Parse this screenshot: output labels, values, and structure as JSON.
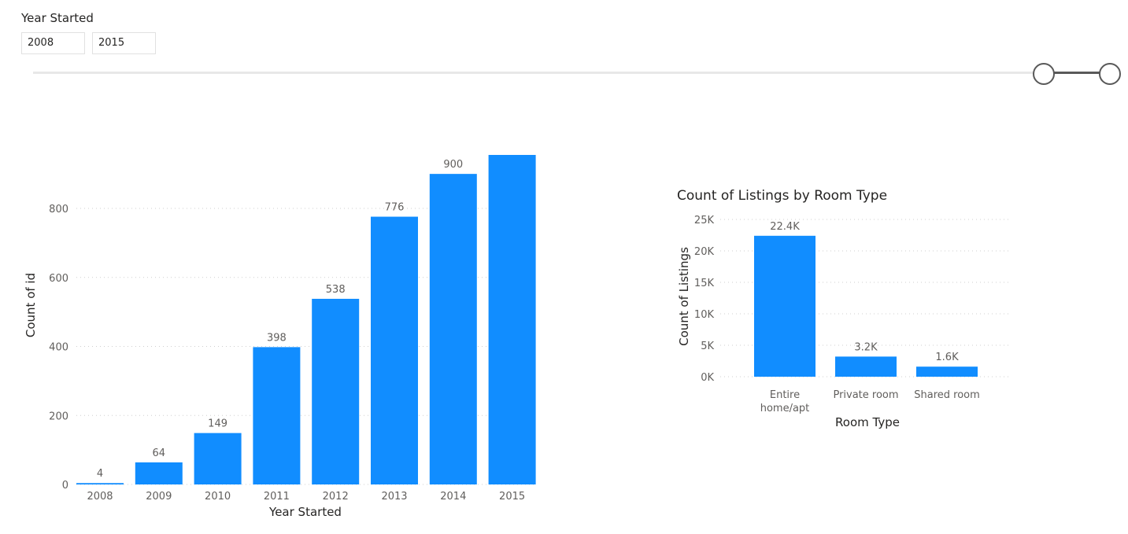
{
  "slicer": {
    "title": "Year Started",
    "start_value": "2008",
    "end_value": "2015",
    "range_min": 2008,
    "range_max": 2015
  },
  "colors": {
    "bar": "#118dff",
    "slider": "#595959"
  },
  "chart_data": [
    {
      "type": "bar",
      "title": "",
      "xlabel": "Year Started",
      "ylabel": "Count of id",
      "categories": [
        "2008",
        "2009",
        "2010",
        "2011",
        "2012",
        "2013",
        "2014",
        "2015"
      ],
      "values": [
        4,
        64,
        149,
        398,
        538,
        776,
        900,
        955
      ],
      "data_labels": [
        "4",
        "64",
        "149",
        "398",
        "538",
        "776",
        "900",
        ""
      ],
      "yticks": [
        0,
        200,
        400,
        600,
        800
      ],
      "ytick_labels": [
        "0",
        "200",
        "400",
        "600",
        "800"
      ],
      "ylim": [
        0,
        955
      ],
      "grid": true
    },
    {
      "type": "bar",
      "title": "Count of Listings by Room Type",
      "xlabel": "Room Type",
      "ylabel": "Count of Listings",
      "categories": [
        [
          "Entire",
          "home/apt"
        ],
        [
          "Private room"
        ],
        [
          "Shared room"
        ]
      ],
      "values": [
        22400,
        3200,
        1600
      ],
      "data_labels": [
        "22.4K",
        "3.2K",
        "1.6K"
      ],
      "yticks": [
        0,
        5000,
        10000,
        15000,
        20000,
        25000
      ],
      "ytick_labels": [
        "0K",
        "5K",
        "10K",
        "15K",
        "20K",
        "25K"
      ],
      "ylim": [
        0,
        25000
      ],
      "grid": true
    }
  ]
}
